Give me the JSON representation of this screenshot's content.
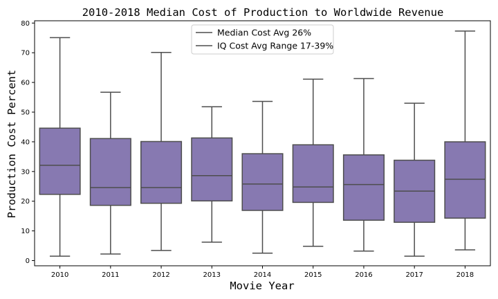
{
  "chart_data": {
    "type": "box",
    "title": "2010-2018 Median Cost of Production to Worldwide Revenue",
    "xlabel": "Movie Year",
    "ylabel": "Production Cost Percent",
    "ylim": [
      -2,
      81
    ],
    "yticks": [
      0,
      10,
      20,
      30,
      40,
      50,
      60,
      70,
      80
    ],
    "categories": [
      "2010",
      "2011",
      "2012",
      "2013",
      "2014",
      "2015",
      "2016",
      "2017",
      "2018"
    ],
    "boxes": [
      {
        "whisker_low": 1.5,
        "q1": 22.3,
        "median": 32.1,
        "q3": 44.6,
        "whisker_high": 75.1
      },
      {
        "whisker_low": 2.2,
        "q1": 18.6,
        "median": 24.6,
        "q3": 41.1,
        "whisker_high": 56.7
      },
      {
        "whisker_low": 3.4,
        "q1": 19.3,
        "median": 24.6,
        "q3": 40.1,
        "whisker_high": 70.1
      },
      {
        "whisker_low": 6.2,
        "q1": 20.1,
        "median": 28.6,
        "q3": 41.3,
        "whisker_high": 51.8
      },
      {
        "whisker_low": 2.5,
        "q1": 16.9,
        "median": 25.8,
        "q3": 36.0,
        "whisker_high": 53.6
      },
      {
        "whisker_low": 4.8,
        "q1": 19.6,
        "median": 24.8,
        "q3": 39.0,
        "whisker_high": 61.1
      },
      {
        "whisker_low": 3.2,
        "q1": 13.6,
        "median": 25.6,
        "q3": 35.6,
        "whisker_high": 61.3
      },
      {
        "whisker_low": 1.5,
        "q1": 12.9,
        "median": 23.4,
        "q3": 33.8,
        "whisker_high": 53.0
      },
      {
        "whisker_low": 3.6,
        "q1": 14.3,
        "median": 27.4,
        "q3": 40.0,
        "whisker_high": 77.3
      }
    ],
    "legend": {
      "position": "top-center",
      "entries": [
        "Median Cost Avg 26%",
        "IQ Cost Avg Range 17-39%"
      ]
    },
    "grid": false,
    "colors": {
      "box_fill": "#8779b1",
      "line": "#4d4d4d",
      "axis": "#000000"
    }
  }
}
